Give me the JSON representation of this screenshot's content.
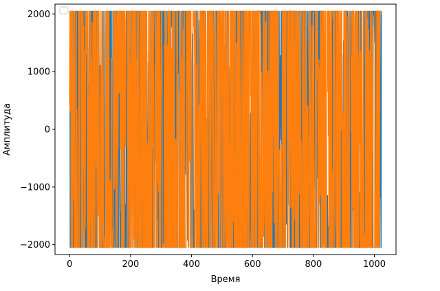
{
  "chart_data": {
    "type": "line",
    "title": "",
    "xlabel": "Время",
    "ylabel": "Амплитуда",
    "xlim": [
      -48,
      1071
    ],
    "ylim": [
      -2170,
      2170
    ],
    "x_ticks": [
      0,
      200,
      400,
      600,
      800,
      1000
    ],
    "x_tick_labels": [
      "0",
      "200",
      "400",
      "600",
      "800",
      "1000"
    ],
    "y_ticks": [
      -2000,
      -1000,
      0,
      1000,
      2000
    ],
    "y_tick_labels": [
      "−2000",
      "−1000",
      "0",
      "1000",
      "2000"
    ],
    "grid": false,
    "legend": {
      "location": "upper left",
      "entries": []
    },
    "series": [
      {
        "color": "#1f77b4",
        "points": 1024,
        "x_start": 0,
        "x_end": 1023,
        "min": -2047,
        "max": 2047
      },
      {
        "color": "#ff7f0e",
        "points": 1024,
        "x_start": 0,
        "x_end": 1023,
        "min": -2047,
        "max": 2047
      }
    ]
  }
}
